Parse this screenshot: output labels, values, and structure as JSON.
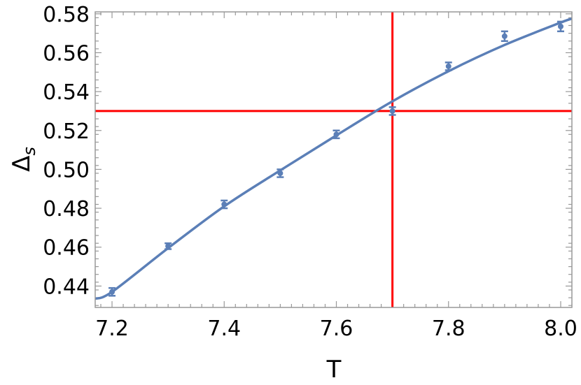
{
  "chart_data": {
    "type": "scatter",
    "xlabel": "T",
    "ylabel": "Δ",
    "ylabel_subscript": "s",
    "xlim": [
      7.17,
      8.02
    ],
    "ylim": [
      0.429,
      0.581
    ],
    "x_ticks": [
      "7.2",
      "7.4",
      "7.6",
      "7.8",
      "8.0"
    ],
    "x_tick_values": [
      7.2,
      7.4,
      7.6,
      7.8,
      8.0
    ],
    "y_ticks": [
      "0.44",
      "0.46",
      "0.48",
      "0.50",
      "0.52",
      "0.54",
      "0.56",
      "0.58"
    ],
    "y_tick_values": [
      0.44,
      0.46,
      0.48,
      0.5,
      0.52,
      0.54,
      0.56,
      0.58
    ],
    "points": [
      {
        "x": 7.2,
        "y": 0.437,
        "err": 0.002
      },
      {
        "x": 7.3,
        "y": 0.4605,
        "err": 0.0015
      },
      {
        "x": 7.4,
        "y": 0.482,
        "err": 0.002
      },
      {
        "x": 7.5,
        "y": 0.498,
        "err": 0.002
      },
      {
        "x": 7.6,
        "y": 0.518,
        "err": 0.002
      },
      {
        "x": 7.7,
        "y": 0.53,
        "err": 0.002
      },
      {
        "x": 7.8,
        "y": 0.553,
        "err": 0.002
      },
      {
        "x": 7.9,
        "y": 0.5685,
        "err": 0.0025
      },
      {
        "x": 8.0,
        "y": 0.5735,
        "err": 0.0025
      }
    ],
    "fit_curve": {
      "x": [
        7.17,
        7.2,
        7.3,
        7.4,
        7.5,
        7.6,
        7.7,
        7.8,
        7.9,
        8.0,
        8.02
      ],
      "y": [
        0.4335,
        0.437,
        0.4595,
        0.481,
        0.4995,
        0.5175,
        0.535,
        0.5505,
        0.564,
        0.5755,
        0.5775
      ]
    },
    "reference_lines": {
      "vertical_x": 7.7,
      "horizontal_y": 0.53
    },
    "colors": {
      "series": "#5b7fb7",
      "reference": "#ff0000",
      "frame": "#999999"
    }
  }
}
